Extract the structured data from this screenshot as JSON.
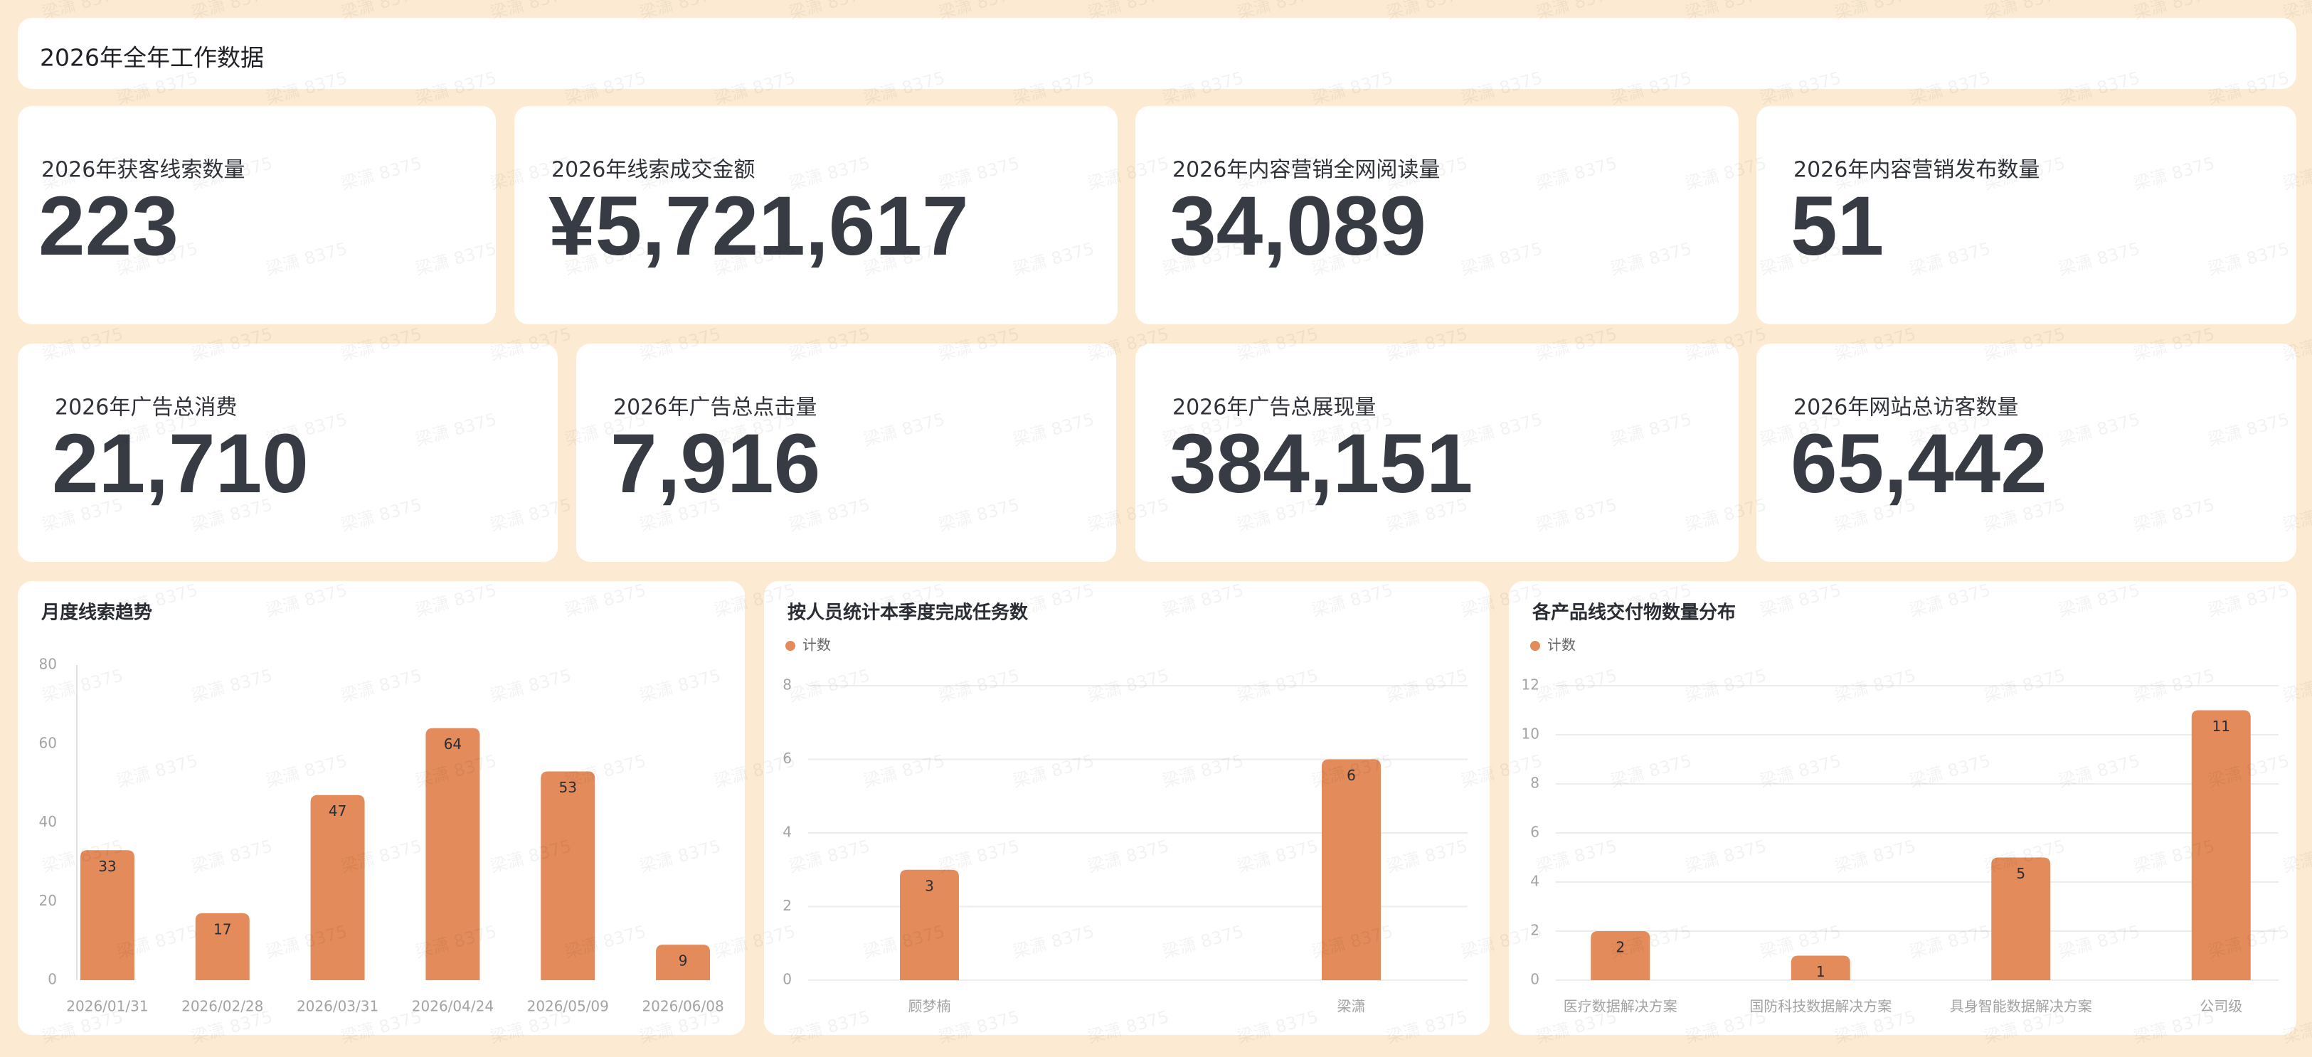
{
  "header": {
    "title": "2026年全年工作数据"
  },
  "watermark": "梁潇 8375",
  "kpis": [
    {
      "label": "2026年获客线索数量",
      "value": "223"
    },
    {
      "label": "2026年线索成交金额",
      "value": "¥5,721,617"
    },
    {
      "label": "2026年内容营销全网阅读量",
      "value": "34,089"
    },
    {
      "label": "2026年内容营销发布数量",
      "value": "51"
    },
    {
      "label": "2026年广告总消费",
      "value": "21,710"
    },
    {
      "label": "2026年广告总点击量",
      "value": "7,916"
    },
    {
      "label": "2026年广告总展现量",
      "value": "384,151"
    },
    {
      "label": "2026年网站总访客数量",
      "value": "65,442"
    }
  ],
  "chart_data": [
    {
      "type": "bar",
      "title": "月度线索趋势",
      "categories": [
        "2026/01/31",
        "2026/02/28",
        "2026/03/31",
        "2026/04/24",
        "2026/05/09",
        "2026/06/08"
      ],
      "values": [
        33,
        17,
        47,
        64,
        53,
        9
      ],
      "color": "#e38b5a",
      "ylim": [
        0,
        80
      ],
      "yticks": [
        0,
        20,
        40,
        60,
        80
      ],
      "grid": false
    },
    {
      "type": "bar",
      "title": "按人员统计本季度完成任务数",
      "categories": [
        "顾梦楠",
        "梁潇"
      ],
      "series": [
        {
          "name": "计数",
          "color": "#e38b5a",
          "values": [
            3,
            6
          ]
        }
      ],
      "ylim": [
        0,
        8
      ],
      "yticks": [
        0,
        2,
        4,
        6,
        8
      ],
      "grid": true
    },
    {
      "type": "bar",
      "title": "各产品线交付物数量分布",
      "categories": [
        "医疗数据解决方案",
        "国防科技数据解决方案",
        "具身智能数据解决方案",
        "公司级"
      ],
      "series": [
        {
          "name": "计数",
          "color": "#e38b5a",
          "values": [
            2,
            1,
            5,
            11
          ]
        }
      ],
      "ylim": [
        0,
        12
      ],
      "yticks": [
        0,
        2,
        4,
        6,
        8,
        10,
        12
      ],
      "grid": true
    }
  ]
}
